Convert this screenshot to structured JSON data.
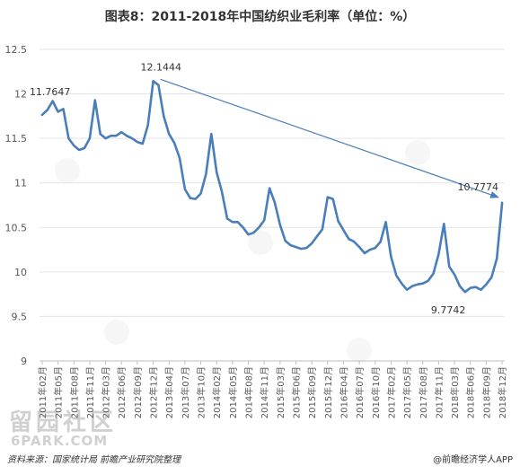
{
  "title": "图表8：2011-2018年中国纺织业毛利率（单位：%）",
  "footer": {
    "source": "资料来源：国家统计局 前瞻产业研究院整理",
    "brand": "@前瞻经济学人APP"
  },
  "watermark": {
    "text": "留园社区",
    "sub": "6PARK.COM"
  },
  "colors": {
    "line": "#4a7ebb",
    "arrow": "#4a7ebb",
    "grid": "#e3e3e3",
    "text": "#333333"
  },
  "chart_data": {
    "type": "line",
    "title": "图表8：2011-2018年中国纺织业毛利率（单位：%）",
    "xlabel": "",
    "ylabel": "",
    "ylim": [
      9,
      12.5
    ],
    "yticks": [
      "12.5",
      "12",
      "11.5",
      "11",
      "10.5",
      "10",
      "9.5",
      "9"
    ],
    "grid": true,
    "legend": "none",
    "xtick_labels": [
      "2011年02月",
      "2011年05月",
      "2011年08月",
      "2011年11月",
      "2012年03月",
      "2012年06月",
      "2012年09月",
      "2012年12月",
      "2013年04月",
      "2013年07月",
      "2013年10月",
      "2014年02月",
      "2014年05月",
      "2014年08月",
      "2014年11月",
      "2015年03月",
      "2015年06月",
      "2015年09月",
      "2015年12月",
      "2016年04月",
      "2016年07月",
      "2016年10月",
      "2017年02月",
      "2017年05月",
      "2017年08月",
      "2017年11月",
      "2018年03月",
      "2018年06月",
      "2018年09月",
      "2018年12月"
    ],
    "series": [
      {
        "name": "",
        "x": [
          "2011年02月",
          "2011年03月",
          "2011年04月",
          "2011年05月",
          "2011年06月",
          "2011年07月",
          "2011年08月",
          "2011年09月",
          "2011年10月",
          "2011年11月",
          "2011年12月",
          "2012年02月",
          "2012年03月",
          "2012年04月",
          "2012年05月",
          "2012年06月",
          "2012年07月",
          "2012年08月",
          "2012年09月",
          "2012年10月",
          "2012年11月",
          "2012年12月",
          "2013年02月",
          "2013年03月",
          "2013年04月",
          "2013年05月",
          "2013年06月",
          "2013年07月",
          "2013年08月",
          "2013年09月",
          "2013年10月",
          "2013年11月",
          "2013年12月",
          "2014年02月",
          "2014年03月",
          "2014年04月",
          "2014年05月",
          "2014年06月",
          "2014年07月",
          "2014年08月",
          "2014年09月",
          "2014年10月",
          "2014年11月",
          "2014年12月",
          "2015年02月",
          "2015年03月",
          "2015年04月",
          "2015年05月",
          "2015年06月",
          "2015年07月",
          "2015年08月",
          "2015年09月",
          "2015年10月",
          "2015年11月",
          "2015年12月",
          "2016年02月",
          "2016年03月",
          "2016年04月",
          "2016年05月",
          "2016年06月",
          "2016年07月",
          "2016年08月",
          "2016年09月",
          "2016年10月",
          "2016年11月",
          "2016年12月",
          "2017年02月",
          "2017年03月",
          "2017年04月",
          "2017年05月",
          "2017年06月",
          "2017年07月",
          "2017年08月",
          "2017年09月",
          "2017年10月",
          "2017年11月",
          "2017年12月",
          "2018年02月",
          "2018年03月",
          "2018年04月",
          "2018年05月",
          "2018年06月",
          "2018年07月",
          "2018年08月",
          "2018年09月",
          "2018年10月",
          "2018年11月",
          "2018年12月"
        ],
        "values": [
          11.7647,
          11.82,
          11.92,
          11.8,
          11.83,
          11.5,
          11.42,
          11.37,
          11.39,
          11.5,
          11.93,
          11.55,
          11.5,
          11.53,
          11.53,
          11.57,
          11.53,
          11.5,
          11.46,
          11.44,
          11.65,
          12.1444,
          12.1,
          11.75,
          11.55,
          11.45,
          11.28,
          10.93,
          10.83,
          10.82,
          10.88,
          11.1,
          11.55,
          11.12,
          10.9,
          10.6,
          10.56,
          10.56,
          10.5,
          10.42,
          10.44,
          10.5,
          10.58,
          10.94,
          10.78,
          10.53,
          10.35,
          10.3,
          10.28,
          10.26,
          10.27,
          10.32,
          10.4,
          10.48,
          10.84,
          10.82,
          10.57,
          10.47,
          10.37,
          10.34,
          10.28,
          10.21,
          10.25,
          10.27,
          10.34,
          10.56,
          10.17,
          9.96,
          9.87,
          9.8,
          9.84,
          9.86,
          9.87,
          9.9,
          9.98,
          10.2,
          10.54,
          10.06,
          9.97,
          9.84,
          9.7742,
          9.82,
          9.83,
          9.8,
          9.86,
          9.94,
          10.15,
          10.7774
        ]
      }
    ],
    "annotations": [
      {
        "x": "2011年02月",
        "y": 11.7647,
        "text": "11.7647"
      },
      {
        "x": "2012年12月",
        "y": 12.1444,
        "text": "12.1444"
      },
      {
        "x": "2018年05月",
        "y": 9.7742,
        "text": "9.7742"
      },
      {
        "x": "2018年12月",
        "y": 10.7774,
        "text": "10.7774"
      }
    ],
    "trend_arrow": {
      "from_x": "2012年12月",
      "from_y": 12.1444,
      "to_x": "2018年12月",
      "to_y": 10.7774
    }
  }
}
